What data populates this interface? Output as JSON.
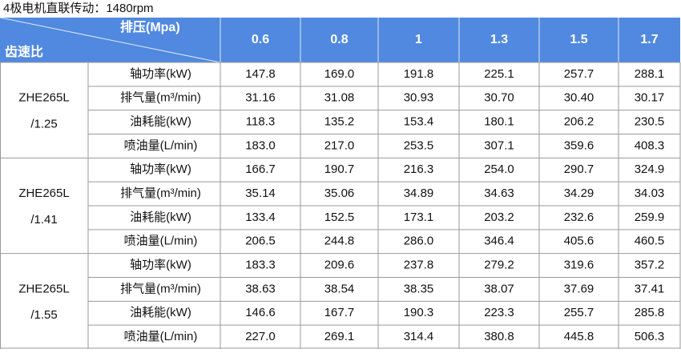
{
  "header": {
    "title": "4极电机直联传动：1480rpm"
  },
  "table": {
    "corner_top": "排压(Mpa)",
    "corner_bottom": "齿速比",
    "columns": [
      "0.6",
      "0.8",
      "1",
      "1.3",
      "1.5",
      "1.7"
    ],
    "groups": [
      {
        "model": "ZHE265L",
        "ratio": "/1.25",
        "rows": [
          {
            "label": "轴功率(kW)",
            "values": [
              "147.8",
              "169.0",
              "191.8",
              "225.1",
              "257.7",
              "288.1"
            ]
          },
          {
            "label": "排气量(m³/min)",
            "values": [
              "31.16",
              "31.08",
              "30.93",
              "30.70",
              "30.40",
              "30.17"
            ]
          },
          {
            "label": "油耗能(kW)",
            "values": [
              "118.3",
              "135.2",
              "153.4",
              "180.1",
              "206.2",
              "230.5"
            ]
          },
          {
            "label": "喷油量(L/min)",
            "values": [
              "183.0",
              "217.0",
              "253.5",
              "307.1",
              "359.6",
              "408.3"
            ]
          }
        ]
      },
      {
        "model": "ZHE265L",
        "ratio": "/1.41",
        "rows": [
          {
            "label": "轴功率(kW)",
            "values": [
              "166.7",
              "190.7",
              "216.3",
              "254.0",
              "290.7",
              "324.9"
            ]
          },
          {
            "label": "排气量(m³/min)",
            "values": [
              "35.14",
              "35.06",
              "34.89",
              "34.63",
              "34.29",
              "34.03"
            ]
          },
          {
            "label": "油耗能(kW)",
            "values": [
              "133.4",
              "152.5",
              "173.1",
              "203.2",
              "232.6",
              "259.9"
            ]
          },
          {
            "label": "喷油量(L/min)",
            "values": [
              "206.5",
              "244.8",
              "286.0",
              "346.4",
              "405.6",
              "460.5"
            ]
          }
        ]
      },
      {
        "model": "ZHE265L",
        "ratio": "/1.55",
        "rows": [
          {
            "label": "轴功率(kW)",
            "values": [
              "183.3",
              "209.6",
              "237.8",
              "279.2",
              "319.6",
              "357.2"
            ]
          },
          {
            "label": "排气量(m³/min)",
            "values": [
              "38.63",
              "38.54",
              "38.35",
              "38.07",
              "37.69",
              "37.41"
            ]
          },
          {
            "label": "油耗能(kW)",
            "values": [
              "146.6",
              "167.7",
              "190.3",
              "223.3",
              "255.7",
              "285.8"
            ]
          },
          {
            "label": "喷油量(L/min)",
            "values": [
              "227.0",
              "269.1",
              "314.4",
              "380.8",
              "445.8",
              "506.3"
            ]
          }
        ]
      }
    ]
  }
}
